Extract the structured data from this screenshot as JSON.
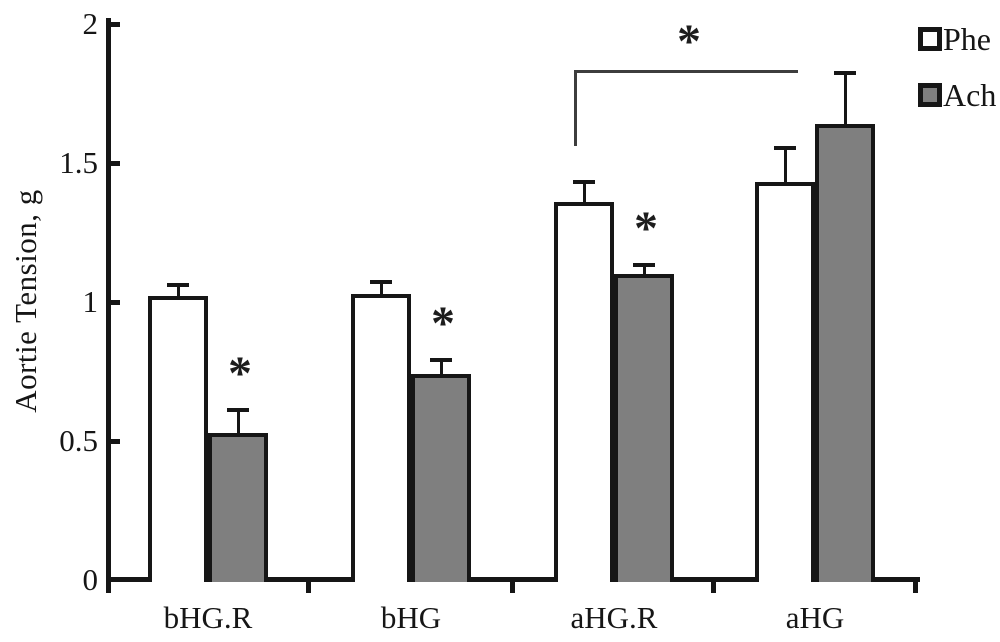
{
  "figure": {
    "ylabel": "Aortie Tension, g",
    "background": "#ffffff",
    "axis_color": "#161616"
  },
  "chart_data": {
    "type": "bar",
    "title": "",
    "xlabel": "",
    "ylabel": "Aortie Tension, g",
    "categories": [
      "bHG.R",
      "bHG",
      "aHG.R",
      "aHG"
    ],
    "series": [
      {
        "name": "Phe",
        "color": "#ffffff",
        "values": [
          1.02,
          1.03,
          1.36,
          1.43
        ],
        "errors": [
          0.05,
          0.05,
          0.08,
          0.13
        ]
      },
      {
        "name": "Ach",
        "color": "#7f7f7f",
        "values": [
          0.53,
          0.74,
          1.1,
          1.64
        ],
        "errors": [
          0.09,
          0.06,
          0.04,
          0.19
        ]
      }
    ],
    "ylim": [
      0,
      2
    ],
    "yticks": [
      0,
      0.5,
      1,
      1.5,
      2
    ],
    "grid": false,
    "error_bars": true,
    "legend_position": "top-right",
    "legend": [
      {
        "label": "Phe",
        "color": "#ffffff"
      },
      {
        "label": "Ach",
        "color": "#7f7f7f"
      }
    ],
    "annotations": {
      "star_symbol": "*",
      "bar_stars": [
        {
          "series": "Ach",
          "category": "bHG.R"
        },
        {
          "series": "Ach",
          "category": "bHG"
        },
        {
          "series": "Ach",
          "category": "aHG.R"
        }
      ],
      "bracket": {
        "label": "*",
        "from_series": "Phe",
        "from_category": "aHG.R",
        "to_series": "Ach",
        "to_category": "aHG"
      }
    }
  }
}
